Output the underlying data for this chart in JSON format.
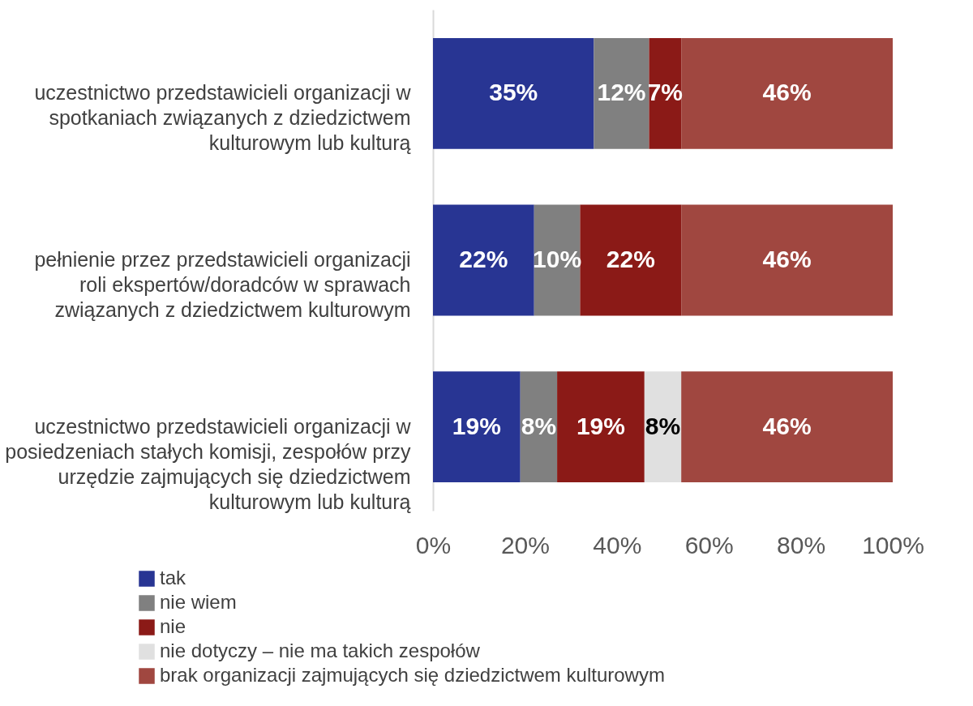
{
  "chart_data": {
    "type": "bar",
    "orientation": "horizontal",
    "stacked": true,
    "categories": [
      "uczestnictwo przedstawicieli organizacji w spotkaniach związanych z dziedzictwem kulturowym lub kulturą",
      "pełnienie przez przedstawicieli organizacji roli ekspertów/doradców w sprawach związanych z dziedzictwem kulturowym",
      "uczestnictwo przedstawicieli organizacji w posiedzeniach stałych komisji, zespołów przy urzędzie zajmujących się dziedzictwem kulturowym lub kulturą"
    ],
    "series": [
      {
        "name": "tak",
        "color": "#283593",
        "values": [
          35,
          22,
          19
        ],
        "value_labels": [
          "35%",
          "22%",
          "19%"
        ]
      },
      {
        "name": "nie wiem",
        "color": "#808080",
        "values": [
          12,
          10,
          8
        ],
        "value_labels": [
          "12%",
          "10%",
          "8%"
        ]
      },
      {
        "name": "nie",
        "color": "#8b1a17",
        "values": [
          7,
          22,
          19
        ],
        "value_labels": [
          "7%",
          "22%",
          "19%"
        ]
      },
      {
        "name": "nie dotyczy – nie ma takich zespołów",
        "color": "#e0e0e0",
        "values": [
          null,
          null,
          8
        ],
        "value_labels": [
          null,
          null,
          "8%"
        ]
      },
      {
        "name": "brak organizacji zajmujących się dziedzictwem kulturowym",
        "color": "#a04740",
        "values": [
          46,
          46,
          46
        ],
        "value_labels": [
          "46%",
          "46%",
          "46%"
        ]
      }
    ],
    "xlim": [
      0,
      100
    ],
    "xticks": [
      {
        "value": 0,
        "label": "0%"
      },
      {
        "value": 20,
        "label": "20%"
      },
      {
        "value": 40,
        "label": "40%"
      },
      {
        "value": 60,
        "label": "60%"
      },
      {
        "value": 80,
        "label": "80%"
      },
      {
        "value": 100,
        "label": "100%"
      }
    ],
    "grid": false,
    "legend": "bottom"
  }
}
